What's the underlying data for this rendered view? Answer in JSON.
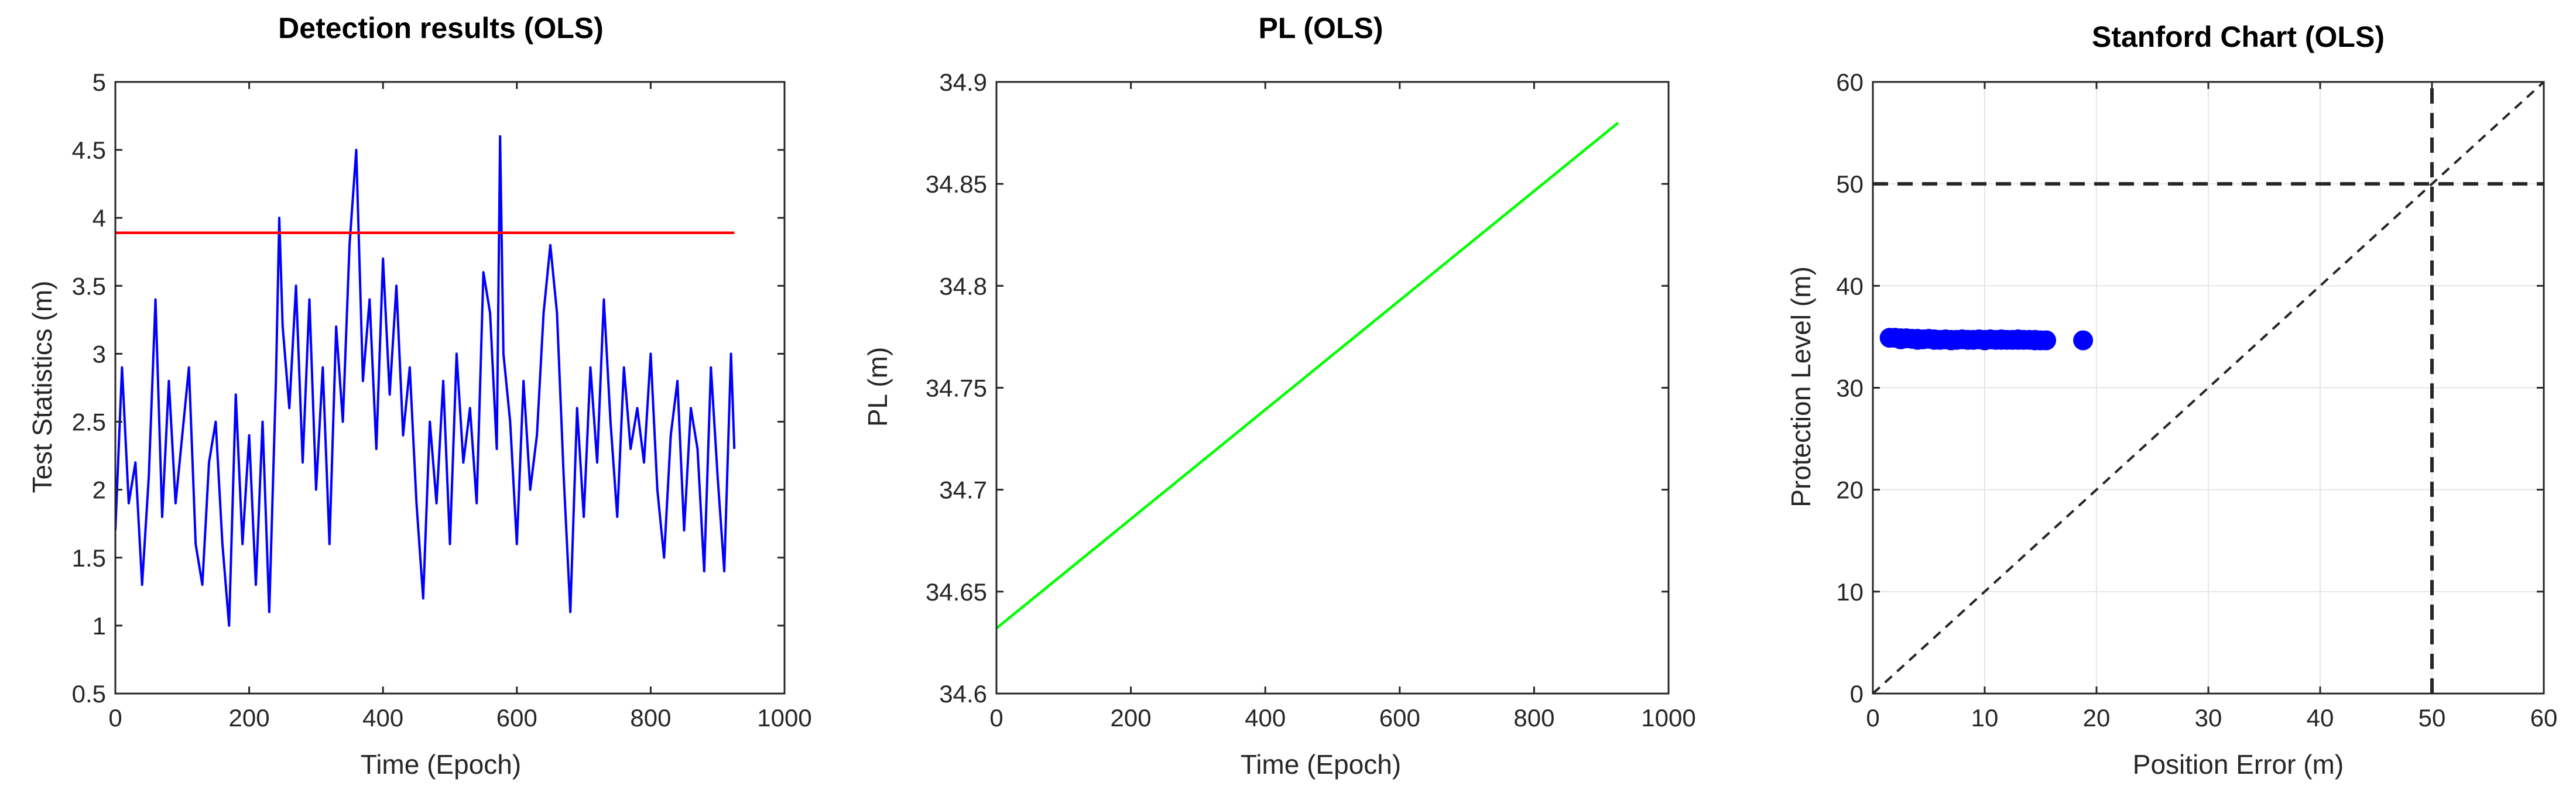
{
  "colors": {
    "ts_line": "#0000ff",
    "threshold": "#ff0000",
    "pl_line": "#00ff00",
    "scatter": "#0000ff",
    "reference": "#262626",
    "grid": "#e6e6e6",
    "axes": "#262626"
  },
  "chart_data": [
    {
      "type": "line",
      "title": "Detection results (OLS)",
      "xlabel": "Time (Epoch)",
      "ylabel": "Test Statistics (m)",
      "xlim": [
        0,
        1000
      ],
      "ylim": [
        0.5,
        5
      ],
      "xticks": [
        0,
        200,
        400,
        600,
        800,
        1000
      ],
      "xtick_labels": [
        "0",
        "200",
        "400",
        "600",
        "800",
        "1000"
      ],
      "yticks": [
        0.5,
        1,
        1.5,
        2,
        2.5,
        3,
        3.5,
        4,
        4.5,
        5
      ],
      "ytick_labels": [
        "0.5",
        "1",
        "1.5",
        "2",
        "2.5",
        "3",
        "3.5",
        "4",
        "4.5",
        "5"
      ],
      "grid": false,
      "series": [
        {
          "color": "#0000ff",
          "x": [
            0,
            10,
            20,
            30,
            40,
            50,
            60,
            70,
            80,
            90,
            100,
            110,
            120,
            130,
            140,
            150,
            160,
            170,
            180,
            190,
            200,
            210,
            220,
            230,
            240,
            245,
            250,
            260,
            270,
            280,
            290,
            300,
            310,
            320,
            330,
            340,
            350,
            360,
            370,
            380,
            390,
            400,
            410,
            420,
            430,
            440,
            450,
            460,
            470,
            480,
            490,
            500,
            510,
            520,
            530,
            540,
            550,
            560,
            570,
            575,
            580,
            590,
            600,
            610,
            620,
            630,
            640,
            650,
            660,
            670,
            680,
            690,
            700,
            710,
            720,
            730,
            740,
            750,
            760,
            770,
            780,
            790,
            800,
            810,
            820,
            830,
            840,
            850,
            860,
            870,
            880,
            890,
            900,
            910,
            920,
            925
          ],
          "y": [
            1.7,
            2.9,
            1.9,
            2.2,
            1.3,
            2.1,
            3.4,
            1.8,
            2.8,
            1.9,
            2.4,
            2.9,
            1.6,
            1.3,
            2.2,
            2.5,
            1.6,
            1.0,
            2.7,
            1.6,
            2.4,
            1.3,
            2.5,
            1.1,
            2.8,
            4.0,
            3.2,
            2.6,
            3.5,
            2.2,
            3.4,
            2.0,
            2.9,
            1.6,
            3.2,
            2.5,
            3.8,
            4.5,
            2.8,
            3.4,
            2.3,
            3.7,
            2.7,
            3.5,
            2.4,
            2.9,
            1.9,
            1.2,
            2.5,
            1.9,
            2.8,
            1.6,
            3.0,
            2.2,
            2.6,
            1.9,
            3.6,
            3.3,
            2.3,
            4.6,
            3.0,
            2.5,
            1.6,
            2.8,
            2.0,
            2.4,
            3.3,
            3.8,
            3.3,
            2.1,
            1.1,
            2.6,
            1.8,
            2.9,
            2.2,
            3.4,
            2.5,
            1.8,
            2.9,
            2.3,
            2.6,
            2.2,
            3.0,
            2.0,
            1.5,
            2.4,
            2.8,
            1.7,
            2.6,
            2.3,
            1.4,
            2.9,
            2.1,
            1.4,
            3.0,
            2.3
          ]
        },
        {
          "color": "#ff0000",
          "x": [
            0,
            925
          ],
          "y": [
            3.89,
            3.89
          ]
        }
      ]
    },
    {
      "type": "line",
      "title": "PL (OLS)",
      "xlabel": "Time (Epoch)",
      "ylabel": "PL (m)",
      "xlim": [
        0,
        1000
      ],
      "ylim": [
        34.6,
        34.9
      ],
      "xticks": [
        0,
        200,
        400,
        600,
        800,
        1000
      ],
      "xtick_labels": [
        "0",
        "200",
        "400",
        "600",
        "800",
        "1000"
      ],
      "yticks": [
        34.6,
        34.65,
        34.7,
        34.75,
        34.8,
        34.85,
        34.9
      ],
      "ytick_labels": [
        "34.6",
        "34.65",
        "34.7",
        "34.75",
        "34.8",
        "34.85",
        "34.9"
      ],
      "grid": false,
      "series": [
        {
          "color": "#00ff00",
          "x": [
            0,
            925
          ],
          "y": [
            34.632,
            34.88
          ]
        }
      ]
    },
    {
      "type": "scatter",
      "title": "Stanford Chart (OLS)",
      "xlabel": "Position Error (m)",
      "ylabel": "Protection Level (m)",
      "xlim": [
        0,
        60
      ],
      "ylim": [
        0,
        60
      ],
      "xticks": [
        0,
        10,
        20,
        30,
        40,
        50,
        60
      ],
      "xtick_labels": [
        "0",
        "10",
        "20",
        "30",
        "40",
        "50",
        "60"
      ],
      "yticks": [
        0,
        10,
        20,
        30,
        40,
        50,
        60
      ],
      "ytick_labels": [
        "0",
        "10",
        "20",
        "30",
        "40",
        "50",
        "60"
      ],
      "grid": true,
      "points": {
        "color": "#0000ff",
        "x": [
          1.5,
          2.0,
          2.5,
          3.0,
          3.5,
          4.0,
          4.5,
          5.0,
          5.5,
          6.0,
          6.5,
          7.0,
          7.5,
          8.0,
          8.5,
          9.0,
          9.5,
          10.0,
          10.5,
          11.0,
          11.5,
          12.0,
          12.5,
          13.0,
          13.5,
          14.0,
          14.5,
          15.0,
          15.5,
          2.5,
          4.0,
          5.5,
          7.0,
          8.5,
          10.0,
          11.5,
          13.0,
          14.5,
          18.8
        ],
        "y": [
          34.9,
          34.9,
          34.85,
          34.85,
          34.8,
          34.8,
          34.75,
          34.8,
          34.75,
          34.7,
          34.75,
          34.7,
          34.7,
          34.75,
          34.7,
          34.7,
          34.75,
          34.7,
          34.75,
          34.7,
          34.75,
          34.7,
          34.7,
          34.75,
          34.7,
          34.7,
          34.7,
          34.65,
          34.65,
          34.75,
          34.7,
          34.7,
          34.65,
          34.7,
          34.65,
          34.7,
          34.7,
          34.65,
          34.65
        ]
      },
      "reference_lines": [
        {
          "style": "dashed",
          "x": [
            0,
            60
          ],
          "y": [
            0,
            60
          ]
        },
        {
          "style": "dashed",
          "x": [
            0,
            60
          ],
          "y": [
            50,
            50
          ]
        },
        {
          "style": "dashed",
          "x": [
            50,
            50
          ],
          "y": [
            0,
            60
          ]
        }
      ]
    }
  ]
}
